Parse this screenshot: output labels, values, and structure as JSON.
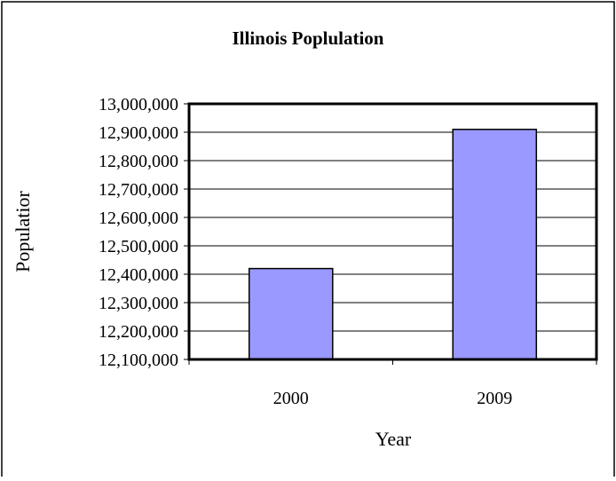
{
  "chart_data": {
    "type": "bar",
    "title": "Illinois Poplulation",
    "xlabel": "Year",
    "ylabel": "Populatior",
    "categories": [
      "2000",
      "2009"
    ],
    "values": [
      12420000,
      12910000
    ],
    "ylim": [
      12100000,
      13000000
    ],
    "y_ticks": [
      "12,100,000",
      "12,200,000",
      "12,300,000",
      "12,400,000",
      "12,500,000",
      "12,600,000",
      "12,700,000",
      "12,800,000",
      "12,900,000",
      "13,000,000"
    ],
    "grid": true,
    "legend": "none",
    "bar_color": "#9999ff"
  }
}
